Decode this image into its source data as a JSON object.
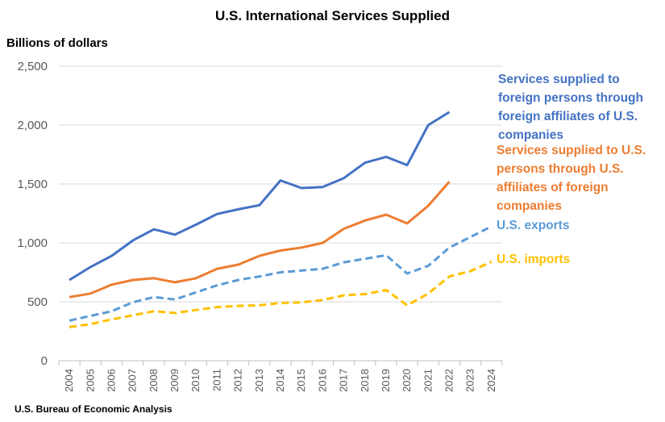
{
  "chart_data": {
    "type": "line",
    "title": "U.S. International Services Supplied",
    "ylabel": "Billions of dollars",
    "xlabel": "",
    "source": "U.S. Bureau of Economic Analysis",
    "ylim": [
      0,
      2500
    ],
    "yticks": [
      0,
      500,
      1000,
      1500,
      2000,
      2500
    ],
    "ytick_labels": [
      "0",
      "500",
      "1,000",
      "1,500",
      "2,000",
      "2,500"
    ],
    "x": [
      "2004",
      "2005",
      "2006",
      "2007",
      "2008",
      "2009",
      "2010",
      "2011",
      "2012",
      "2013",
      "2014",
      "2015",
      "2016",
      "2017",
      "2018",
      "2019",
      "2020",
      "2021",
      "2022",
      "2023",
      "2024"
    ],
    "grid": "horizontal",
    "series": [
      {
        "name": "Services supplied to foreign persons through foreign affiliates of U.S. companies",
        "label_lines": [
          "Services supplied to",
          "foreign persons through",
          "foreign affiliates of U.S.",
          "companies"
        ],
        "color": "#4472C4",
        "dash": false,
        "values": [
          685,
          795,
          890,
          1020,
          1115,
          1070,
          1155,
          1245,
          1285,
          1320,
          1530,
          1465,
          1475,
          1550,
          1680,
          1730,
          1660,
          2000,
          2110,
          null,
          null
        ]
      },
      {
        "name": "Services supplied to U.S. persons through U.S. affiliates of foreign companies",
        "label_lines": [
          "Services supplied to U.S.",
          "persons through U.S.",
          "affiliates of foreign",
          "companies"
        ],
        "color": "#ED7D31",
        "dash": false,
        "values": [
          540,
          570,
          645,
          685,
          700,
          665,
          700,
          780,
          815,
          890,
          935,
          960,
          1000,
          1120,
          1190,
          1240,
          1165,
          1315,
          1520,
          null,
          null
        ]
      },
      {
        "name": "U.S. exports",
        "label_lines": [
          "U.S. exports"
        ],
        "color": "#5B9BD5",
        "dash": true,
        "values": [
          340,
          380,
          420,
          495,
          540,
          520,
          580,
          640,
          685,
          715,
          750,
          765,
          780,
          835,
          865,
          895,
          740,
          805,
          960,
          1050,
          1140
        ]
      },
      {
        "name": "U.S. imports",
        "label_lines": [
          "U.S. imports"
        ],
        "color": "#FFC000",
        "dash": true,
        "values": [
          285,
          310,
          350,
          385,
          420,
          405,
          430,
          455,
          465,
          470,
          490,
          495,
          515,
          555,
          565,
          600,
          470,
          570,
          715,
          760,
          840
        ]
      }
    ]
  }
}
